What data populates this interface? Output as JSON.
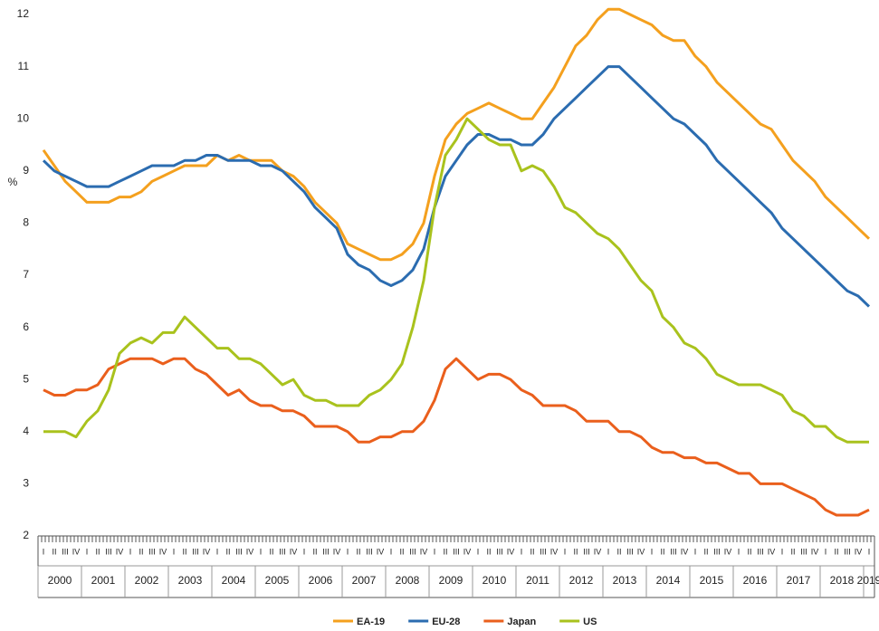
{
  "chart_data": {
    "type": "line",
    "y_axis_label": "%",
    "ylim": [
      2,
      12
    ],
    "yticks": [
      2,
      3,
      4,
      5,
      6,
      7,
      8,
      9,
      10,
      11,
      12
    ],
    "categories": [
      "I",
      "II",
      "III",
      "IV",
      "I",
      "II",
      "III",
      "IV",
      "I",
      "II",
      "III",
      "IV",
      "I",
      "II",
      "III",
      "IV",
      "I",
      "II",
      "III",
      "IV",
      "I",
      "II",
      "III",
      "IV",
      "I",
      "II",
      "III",
      "IV",
      "I",
      "II",
      "III",
      "IV",
      "I",
      "II",
      "III",
      "IV",
      "I",
      "II",
      "III",
      "IV",
      "I",
      "II",
      "III",
      "IV",
      "I",
      "II",
      "III",
      "IV",
      "I",
      "II",
      "III",
      "IV",
      "I",
      "II",
      "III",
      "IV",
      "I",
      "II",
      "III",
      "IV",
      "I",
      "II",
      "III",
      "IV",
      "I",
      "II",
      "III",
      "IV",
      "I",
      "II",
      "III",
      "IV",
      "I",
      "II",
      "III",
      "IV",
      "I"
    ],
    "years": [
      "2000",
      "2001",
      "2002",
      "2003",
      "2004",
      "2005",
      "2006",
      "2007",
      "2008",
      "2009",
      "2010",
      "2011",
      "2012",
      "2013",
      "2014",
      "2015",
      "2016",
      "2017",
      "2018",
      "2019"
    ],
    "legend": "bottom",
    "series": [
      {
        "name": "EA-19",
        "color": "#f4a01e",
        "values": [
          9.4,
          9.1,
          8.8,
          8.6,
          8.4,
          8.4,
          8.4,
          8.5,
          8.5,
          8.6,
          8.8,
          8.9,
          9.0,
          9.1,
          9.1,
          9.1,
          9.3,
          9.2,
          9.3,
          9.2,
          9.2,
          9.2,
          9.0,
          8.9,
          8.7,
          8.4,
          8.2,
          8.0,
          7.6,
          7.5,
          7.4,
          7.3,
          7.3,
          7.4,
          7.6,
          8.0,
          8.9,
          9.6,
          9.9,
          10.1,
          10.2,
          10.3,
          10.2,
          10.1,
          10.0,
          10.0,
          10.3,
          10.6,
          11.0,
          11.4,
          11.6,
          11.9,
          12.1,
          12.1,
          12.0,
          11.9,
          11.8,
          11.6,
          11.5,
          11.5,
          11.2,
          11.0,
          10.7,
          10.5,
          10.3,
          10.1,
          9.9,
          9.8,
          9.5,
          9.2,
          9.0,
          8.8,
          8.5,
          8.3,
          8.1,
          7.9,
          7.7
        ]
      },
      {
        "name": "EU-28",
        "color": "#2b6cb0",
        "values": [
          9.2,
          9.0,
          8.9,
          8.8,
          8.7,
          8.7,
          8.7,
          8.8,
          8.9,
          9.0,
          9.1,
          9.1,
          9.1,
          9.2,
          9.2,
          9.3,
          9.3,
          9.2,
          9.2,
          9.2,
          9.1,
          9.1,
          9.0,
          8.8,
          8.6,
          8.3,
          8.1,
          7.9,
          7.4,
          7.2,
          7.1,
          6.9,
          6.8,
          6.9,
          7.1,
          7.5,
          8.3,
          8.9,
          9.2,
          9.5,
          9.7,
          9.7,
          9.6,
          9.6,
          9.5,
          9.5,
          9.7,
          10.0,
          10.2,
          10.4,
          10.6,
          10.8,
          11.0,
          11.0,
          10.8,
          10.6,
          10.4,
          10.2,
          10.0,
          9.9,
          9.7,
          9.5,
          9.2,
          9.0,
          8.8,
          8.6,
          8.4,
          8.2,
          7.9,
          7.7,
          7.5,
          7.3,
          7.1,
          6.9,
          6.7,
          6.6,
          6.4
        ]
      },
      {
        "name": "Japan",
        "color": "#ea5f1c",
        "values": [
          4.8,
          4.7,
          4.7,
          4.8,
          4.8,
          4.9,
          5.2,
          5.3,
          5.4,
          5.4,
          5.4,
          5.3,
          5.4,
          5.4,
          5.2,
          5.1,
          4.9,
          4.7,
          4.8,
          4.6,
          4.5,
          4.5,
          4.4,
          4.4,
          4.3,
          4.1,
          4.1,
          4.1,
          4.0,
          3.8,
          3.8,
          3.9,
          3.9,
          4.0,
          4.0,
          4.2,
          4.6,
          5.2,
          5.4,
          5.2,
          5.0,
          5.1,
          5.1,
          5.0,
          4.8,
          4.7,
          4.5,
          4.5,
          4.5,
          4.4,
          4.2,
          4.2,
          4.2,
          4.0,
          4.0,
          3.9,
          3.7,
          3.6,
          3.6,
          3.5,
          3.5,
          3.4,
          3.4,
          3.3,
          3.2,
          3.2,
          3.0,
          3.0,
          3.0,
          2.9,
          2.8,
          2.7,
          2.5,
          2.4,
          2.4,
          2.4,
          2.5
        ]
      },
      {
        "name": "US",
        "color": "#a9c21d",
        "values": [
          4.0,
          4.0,
          4.0,
          3.9,
          4.2,
          4.4,
          4.8,
          5.5,
          5.7,
          5.8,
          5.7,
          5.9,
          5.9,
          6.2,
          6.0,
          5.8,
          5.6,
          5.6,
          5.4,
          5.4,
          5.3,
          5.1,
          4.9,
          5.0,
          4.7,
          4.6,
          4.6,
          4.5,
          4.5,
          4.5,
          4.7,
          4.8,
          5.0,
          5.3,
          6.0,
          6.9,
          8.3,
          9.3,
          9.6,
          10.0,
          9.8,
          9.6,
          9.5,
          9.5,
          9.0,
          9.1,
          9.0,
          8.7,
          8.3,
          8.2,
          8.0,
          7.8,
          7.7,
          7.5,
          7.2,
          6.9,
          6.7,
          6.2,
          6.0,
          5.7,
          5.6,
          5.4,
          5.1,
          5.0,
          4.9,
          4.9,
          4.9,
          4.8,
          4.7,
          4.4,
          4.3,
          4.1,
          4.1,
          3.9,
          3.8,
          3.8,
          3.8
        ]
      }
    ]
  }
}
